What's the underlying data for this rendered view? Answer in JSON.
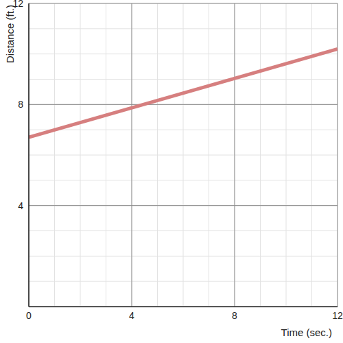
{
  "chart_data": {
    "type": "line",
    "x_label": "Time (sec.)",
    "y_label": "Distance (ft.)",
    "x": [
      0,
      12
    ],
    "values": [
      6.7,
      10.2
    ],
    "color": "#d67f7f",
    "xlim": [
      0,
      12
    ],
    "ylim": [
      0,
      12
    ],
    "xticks": [
      0,
      4,
      8,
      12
    ],
    "yticks": [
      4,
      8,
      12
    ],
    "grid": true
  }
}
